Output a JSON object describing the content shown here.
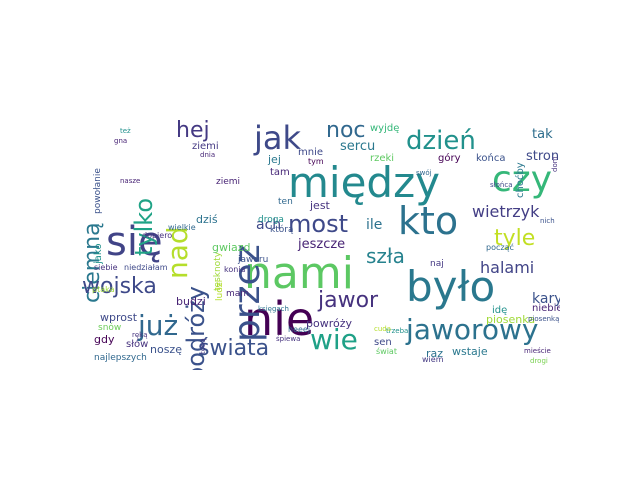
{
  "words": {
    "nami": {
      "text": "nami",
      "color": "#5cc863"
    },
    "nie": {
      "text": "nie",
      "color": "#440154"
    },
    "miedzy": {
      "text": "między",
      "color": "#23898e"
    },
    "bylo": {
      "text": "było",
      "color": "#2a788e"
    },
    "sie": {
      "text": "się",
      "color": "#414487"
    },
    "kto": {
      "text": "kto",
      "color": "#2c728e"
    },
    "czy": {
      "text": "czy",
      "color": "#35b779"
    },
    "przez": {
      "text": "przez",
      "color": "#3b528b"
    },
    "jak": {
      "text": "jak",
      "color": "#3e4989"
    },
    "jaworowy": {
      "text": "jaworowy",
      "color": "#2c728e"
    },
    "swiata": {
      "text": "świata",
      "color": "#3b528b"
    },
    "juz": {
      "text": "już",
      "color": "#31688e"
    },
    "wie": {
      "text": "wie",
      "color": "#1fa187"
    },
    "nad": {
      "text": "nad",
      "color": "#b5de2b"
    },
    "podrozy": {
      "text": "podróży",
      "color": "#3b528b"
    },
    "tylko": {
      "text": "tylko",
      "color": "#20a386"
    },
    "ciemna": {
      "text": "ciemną",
      "color": "#2a788e"
    },
    "dzien": {
      "text": "dzień",
      "color": "#21918c"
    },
    "most": {
      "text": "most",
      "color": "#3e4989"
    },
    "hej": {
      "text": "hej",
      "color": "#443983"
    },
    "noc": {
      "text": "noc",
      "color": "#31688e"
    },
    "tyle": {
      "text": "tyle",
      "color": "#c2df23"
    },
    "szla": {
      "text": "szła",
      "color": "#26828e"
    },
    "jawor": {
      "text": "jawor",
      "color": "#46327e"
    },
    "wojska": {
      "text": "wojska",
      "color": "#3e4989"
    },
    "halami": {
      "text": "halami",
      "color": "#414487"
    },
    "wietrzyk": {
      "text": "wietrzyk",
      "color": "#433e85"
    },
    "kary": {
      "text": "kary",
      "color": "#3b528b"
    },
    "tak": {
      "text": "tak",
      "color": "#2e6e8e"
    },
    "stron": {
      "text": "stron",
      "color": "#3e4989"
    },
    "sercu": {
      "text": "sercu",
      "color": "#2a788e"
    },
    "jeszcze": {
      "text": "jeszcze",
      "color": "#482475"
    },
    "ach": {
      "text": "ach",
      "color": "#3e4989"
    },
    "ile": {
      "text": "ile",
      "color": "#2c728e"
    },
    "jest": {
      "text": "jest",
      "color": "#46337f"
    },
    "jej": {
      "text": "jej",
      "color": "#2a788e"
    },
    "mnie": {
      "text": "mnie",
      "color": "#3e4989"
    },
    "tam": {
      "text": "tam",
      "color": "#482878"
    },
    "ten": {
      "text": "ten",
      "color": "#31688e"
    },
    "wyjde": {
      "text": "wyjdę",
      "color": "#35b779"
    },
    "rzeki": {
      "text": "rzeki",
      "color": "#5ec962"
    },
    "gory": {
      "text": "góry",
      "color": "#440154"
    },
    "konca": {
      "text": "końca",
      "color": "#3b528b"
    },
    "chocby": {
      "text": "choćby",
      "color": "#2a788e"
    },
    "ziemi": {
      "text": "ziemi",
      "color": "#443983"
    },
    "ziemi2": {
      "text": "ziemi",
      "color": "#482475"
    },
    "powolanie": {
      "text": "powołanie",
      "color": "#3b528b"
    },
    "droga": {
      "text": "droga",
      "color": "#21918c"
    },
    "ktora": {
      "text": "którą",
      "color": "#3b528b"
    },
    "tesknoty": {
      "text": "tęsknoty",
      "color": "#a0da39"
    },
    "gwiazd": {
      "text": "gwiazd",
      "color": "#5ec962"
    },
    "dzis": {
      "text": "dziś",
      "color": "#2c728e"
    },
    "jako": {
      "text": "jako",
      "color": "#21918c"
    },
    "dopiero": {
      "text": "dopiero",
      "color": "#46327e"
    },
    "wielkie": {
      "text": "wielkie",
      "color": "#31688e"
    },
    "ludzi": {
      "text": "ludzi",
      "color": "#b5de2b"
    },
    "mam": {
      "text": "mam",
      "color": "#482878"
    },
    "jaworu": {
      "text": "jaworu",
      "color": "#3b528b"
    },
    "konia": {
      "text": "konia",
      "color": "#46327e"
    },
    "budzi": {
      "text": "budzi",
      "color": "#482475"
    },
    "wprost": {
      "text": "wprost",
      "color": "#3e4989"
    },
    "snow": {
      "text": "snów",
      "color": "#6ccd5a"
    },
    "gdy": {
      "text": "gdy",
      "color": "#440154"
    },
    "slow": {
      "text": "słów",
      "color": "#46327e"
    },
    "nosze": {
      "text": "noszę",
      "color": "#3b528b"
    },
    "najlepszych": {
      "text": "najlepszych",
      "color": "#31688e"
    },
    "powrozy": {
      "text": "powróży",
      "color": "#46327e"
    },
    "heeej": {
      "text": "heeej",
      "color": "#31688e"
    },
    "sen": {
      "text": "sen",
      "color": "#3e4989"
    },
    "swiat": {
      "text": "świat",
      "color": "#5ec962"
    },
    "raz": {
      "text": "raz",
      "color": "#2c728e"
    },
    "wstaje": {
      "text": "wstaje",
      "color": "#2a788e"
    },
    "wiem": {
      "text": "wiem",
      "color": "#443983"
    },
    "niebie": {
      "text": "niebie",
      "color": "#482475"
    },
    "ide": {
      "text": "idę",
      "color": "#21918c"
    },
    "piosenka": {
      "text": "piosenka",
      "color": "#a0da39"
    },
    "naj": {
      "text": "naj",
      "color": "#443983"
    },
    "poczac": {
      "text": "począć",
      "color": "#31688e"
    },
    "siebie": {
      "text": "siebie",
      "color": "#46327e"
    },
    "niedzialam": {
      "text": "niedziałam",
      "color": "#3e4989"
    },
    "ptaka": {
      "text": "ptaka",
      "color": "#a0da39"
    },
    "tez": {
      "text": "też",
      "color": "#21918c"
    },
    "gna": {
      "text": "gna",
      "color": "#482475"
    },
    "dnia": {
      "text": "dnia",
      "color": "#482878"
    },
    "tym": {
      "text": "tym",
      "color": "#440154"
    },
    "swoj": {
      "text": "swój",
      "color": "#31688e"
    },
    "slonca": {
      "text": "słońca",
      "color": "#3e4989"
    },
    "nich": {
      "text": "nich",
      "color": "#3b528b"
    },
    "dom": {
      "text": "dom",
      "color": "#46327e"
    },
    "ksiegach": {
      "text": "księgach",
      "color": "#2c728e"
    },
    "piosenka2": {
      "text": "piosenką",
      "color": "#3b528b"
    },
    "miescie": {
      "text": "mieście",
      "color": "#482475"
    },
    "trzeba": {
      "text": "trzeba",
      "color": "#21918c"
    },
    "cuda": {
      "text": "cuda",
      "color": "#b5de2b"
    },
    "spiewa": {
      "text": "śpiewa",
      "color": "#46327e"
    },
    "toba": {
      "text": "tobą",
      "color": "#443983"
    },
    "drogi": {
      "text": "drogi",
      "color": "#7ad151"
    },
    "reka": {
      "text": "ręką",
      "color": "#46327e"
    },
    "nasze": {
      "text": "nasze",
      "color": "#482475"
    }
  }
}
